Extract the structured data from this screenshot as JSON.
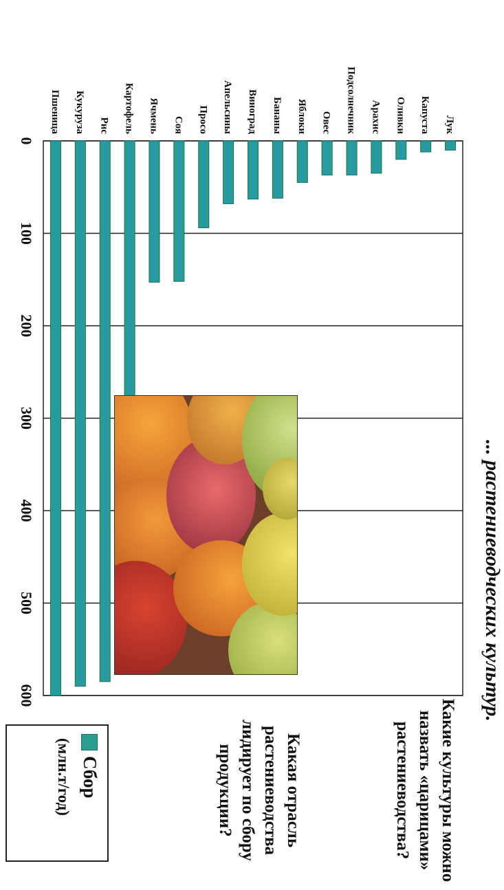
{
  "title": "... растениеводческих культур.",
  "legend": {
    "name": "Сбор",
    "unit": "(млн.т/год)"
  },
  "questions": [
    "Какая отрасль растениеводства лидирует по сбору продукции?",
    "Какие культуры можно назвать «царицами» растениеводства?"
  ],
  "colors": {
    "bar": "#2a9d8f",
    "bar_highlight": "#1f8fe0",
    "bar_edge": "#1b6f65"
  },
  "chart_data": {
    "type": "bar",
    "orientation": "horizontal",
    "categories": [
      "Лук",
      "Капуста",
      "Оливки",
      "Арахис",
      "Подсолнечник",
      "Овес",
      "Яблоки",
      "Бананы",
      "Виноград",
      "Апельсины",
      "Просо",
      "Соя",
      "Ячмень",
      "Картофель",
      "Рис",
      "Кукуруза",
      "Пшеница"
    ],
    "series": [
      {
        "name": "Сбор",
        "values": [
          10,
          12,
          20,
          35,
          37,
          37,
          45,
          62,
          63,
          68,
          94,
          152,
          153,
          302,
          585,
          590,
          600
        ]
      }
    ],
    "xlim": [
      0,
      600
    ],
    "ticks": [
      0,
      100,
      200,
      300,
      400,
      500,
      600
    ],
    "grid": true,
    "legend_position": "right"
  }
}
